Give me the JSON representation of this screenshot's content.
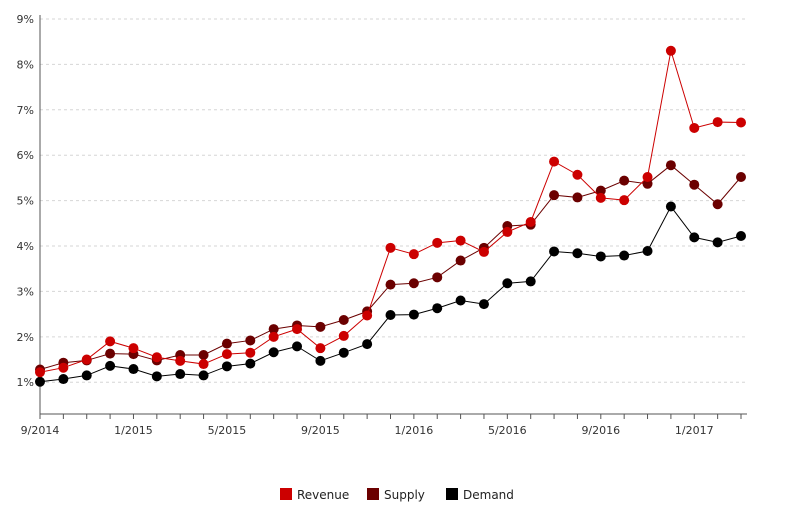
{
  "chart_data": {
    "type": "line",
    "title": "",
    "xlabel": "",
    "ylabel": "",
    "x": [
      "9/2014",
      "10/2014",
      "11/2014",
      "12/2014",
      "1/2015",
      "2/2015",
      "3/2015",
      "4/2015",
      "5/2015",
      "6/2015",
      "7/2015",
      "8/2015",
      "9/2015",
      "10/2015",
      "11/2015",
      "12/2015",
      "1/2016",
      "2/2016",
      "3/2016",
      "4/2016",
      "5/2016",
      "6/2016",
      "7/2016",
      "8/2016",
      "9/2016",
      "10/2016",
      "11/2016",
      "12/2016",
      "1/2017",
      "2/2017",
      "3/2017"
    ],
    "x_tick_labels": [
      "9/2014",
      "1/2015",
      "5/2015",
      "9/2015",
      "1/2016",
      "5/2016",
      "9/2016",
      "1/2017"
    ],
    "y_tick_labels": [
      "1%",
      "2%",
      "3%",
      "4%",
      "5%",
      "6%",
      "7%",
      "8%",
      "9%"
    ],
    "ylim": [
      0.3,
      9
    ],
    "y_unit": "%",
    "grid": "horizontal dashed",
    "legend_position": "bottom-center",
    "series": [
      {
        "name": "Revenue",
        "color": "#cc0000",
        "values": [
          1.22,
          1.32,
          1.5,
          1.9,
          1.75,
          1.55,
          1.47,
          1.4,
          1.62,
          1.65,
          2.0,
          2.17,
          1.75,
          2.02,
          2.47,
          3.96,
          3.82,
          4.07,
          4.12,
          3.87,
          4.31,
          4.53,
          5.86,
          5.57,
          5.06,
          5.01,
          5.52,
          8.3,
          6.6,
          6.73,
          6.72
        ]
      },
      {
        "name": "Supply",
        "color": "#6b0000",
        "values": [
          1.28,
          1.43,
          1.48,
          1.63,
          1.62,
          1.48,
          1.6,
          1.6,
          1.85,
          1.92,
          2.17,
          2.25,
          2.22,
          2.37,
          2.56,
          3.15,
          3.18,
          3.31,
          3.68,
          3.96,
          4.44,
          4.47,
          5.12,
          5.07,
          5.22,
          5.44,
          5.37,
          5.78,
          5.35,
          4.92,
          5.52
        ]
      },
      {
        "name": "Demand",
        "color": "#000000",
        "values": [
          1.01,
          1.07,
          1.15,
          1.36,
          1.29,
          1.13,
          1.18,
          1.15,
          1.35,
          1.41,
          1.66,
          1.79,
          1.47,
          1.65,
          1.84,
          2.48,
          2.49,
          2.63,
          2.8,
          2.72,
          3.18,
          3.22,
          3.88,
          3.84,
          3.77,
          3.79,
          3.89,
          4.87,
          4.19,
          4.08,
          4.22
        ]
      }
    ]
  }
}
